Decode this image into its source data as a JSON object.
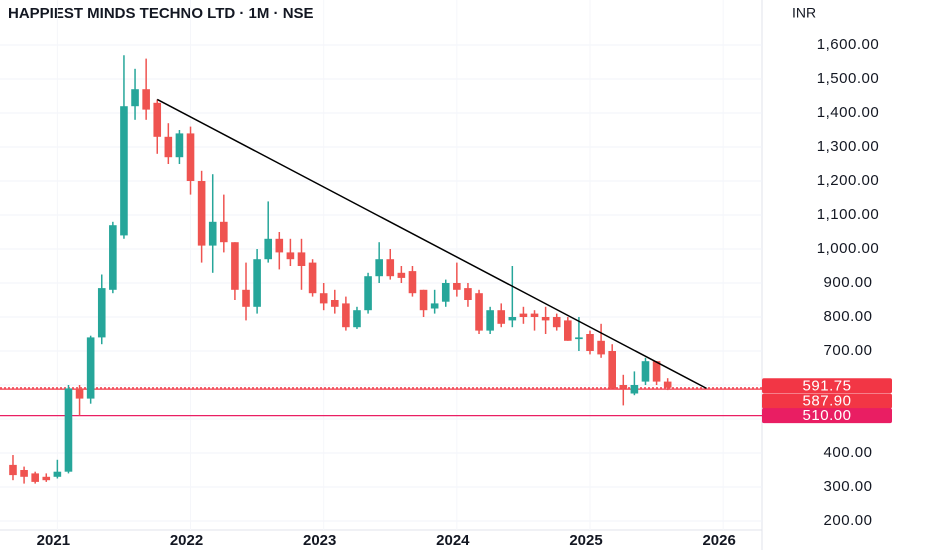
{
  "chart_data": {
    "type": "candlestick",
    "title": "HAPPIEST MINDS TECHNO LTD · 1M · NSE",
    "y_axis_label": "INR",
    "up_color": "#26a69a",
    "down_color": "#ef5350",
    "open": [
      365,
      350,
      340,
      330,
      330,
      345,
      590,
      560,
      740,
      880,
      1040,
      1420,
      1470,
      1430,
      1330,
      1270,
      1340,
      1200,
      1010,
      1080,
      1020,
      880,
      830,
      970,
      1030,
      990,
      990,
      960,
      870,
      850,
      840,
      770,
      820,
      920,
      970,
      930,
      935,
      880,
      825,
      845,
      900,
      885,
      870,
      760,
      820,
      790,
      810,
      810,
      800,
      800,
      790,
      735,
      750,
      730,
      700,
      600,
      575,
      610,
      670,
      610
    ],
    "high": [
      394,
      360,
      345,
      340,
      380,
      600,
      600,
      745,
      925,
      1080,
      1570,
      1530,
      1560,
      1440,
      1370,
      1350,
      1360,
      1230,
      1220,
      1160,
      1020,
      960,
      1000,
      1140,
      1050,
      1030,
      1030,
      970,
      900,
      880,
      860,
      830,
      930,
      1020,
      1000,
      950,
      950,
      880,
      880,
      910,
      960,
      900,
      880,
      830,
      840,
      950,
      830,
      820,
      830,
      810,
      800,
      800,
      760,
      780,
      720,
      630,
      640,
      680,
      670,
      620
    ],
    "low": [
      320,
      310,
      310,
      315,
      325,
      340,
      510,
      545,
      720,
      870,
      1030,
      1380,
      1380,
      1280,
      1250,
      1250,
      1160,
      960,
      930,
      990,
      850,
      790,
      810,
      960,
      940,
      950,
      880,
      860,
      820,
      810,
      760,
      765,
      810,
      900,
      910,
      900,
      860,
      800,
      810,
      830,
      860,
      830,
      750,
      750,
      770,
      770,
      780,
      760,
      750,
      760,
      730,
      700,
      690,
      680,
      590,
      540,
      570,
      600,
      600,
      585
    ],
    "close": [
      335,
      330,
      315,
      320,
      345,
      590,
      560,
      740,
      885,
      1070,
      1420,
      1470,
      1410,
      1330,
      1270,
      1340,
      1200,
      1010,
      1080,
      1020,
      880,
      830,
      970,
      1030,
      990,
      970,
      950,
      870,
      840,
      830,
      770,
      820,
      920,
      970,
      920,
      915,
      870,
      820,
      840,
      900,
      880,
      850,
      760,
      820,
      780,
      800,
      800,
      800,
      790,
      770,
      730,
      740,
      700,
      690,
      590,
      590,
      600,
      670,
      610,
      592
    ],
    "xlim": [
      -1.17,
      67.5
    ],
    "xticks": [
      {
        "value": 4,
        "label": "2021"
      },
      {
        "value": 16,
        "label": "2022"
      },
      {
        "value": 28,
        "label": "2023"
      },
      {
        "value": 40,
        "label": "2024"
      },
      {
        "value": 52,
        "label": "2025"
      },
      {
        "value": 64,
        "label": "2026"
      }
    ],
    "ylim": [
      173.5,
      1732.4
    ],
    "yticks": [
      {
        "value": 200,
        "label": "200.00"
      },
      {
        "value": 300,
        "label": "300.00"
      },
      {
        "value": 400,
        "label": "400.00"
      },
      {
        "value": 500,
        "label": "500.00"
      },
      {
        "value": 600,
        "label": "600.00"
      },
      {
        "value": 700,
        "label": "700.00"
      },
      {
        "value": 800,
        "label": "800.00"
      },
      {
        "value": 900,
        "label": "900.00"
      },
      {
        "value": 1000,
        "label": "1,000.00"
      },
      {
        "value": 1100,
        "label": "1,100.00"
      },
      {
        "value": 1200,
        "label": "1,200.00"
      },
      {
        "value": 1300,
        "label": "1,300.00"
      },
      {
        "value": 1400,
        "label": "1,400.00"
      },
      {
        "value": 1500,
        "label": "1,500.00"
      },
      {
        "value": 1600,
        "label": "1,600.00"
      }
    ],
    "grid": true,
    "levels": [
      {
        "value": 591.75,
        "label": "591.75",
        "color": "#f23645",
        "dashed": true
      },
      {
        "value": 587.9,
        "label": "587.90",
        "color": "#f23645",
        "dashed": false
      },
      {
        "value": 510,
        "label": "510.00",
        "color": "#e91e63",
        "dashed": false
      }
    ],
    "trendline": {
      "x": [
        13,
        62.5
      ],
      "y": [
        1440,
        590
      ],
      "color": "#000000"
    }
  }
}
